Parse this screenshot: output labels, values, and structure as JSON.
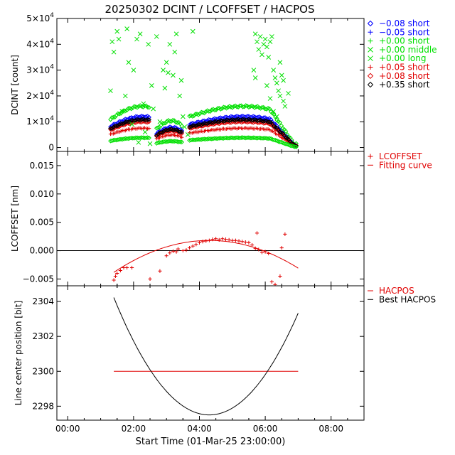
{
  "title": "20250302 DCINT / LCOFFSET / HACPOS",
  "xlabel": "Start Time (01-Mar-25 23:00:00)",
  "colors": {
    "blue": "#0000ff",
    "green": "#00e000",
    "red": "#e00000",
    "black": "#000000",
    "axes": "#000000"
  },
  "chart_data": [
    {
      "type": "scatter",
      "id": "dcint",
      "ylabel": "DCINT [count]",
      "xlim": [
        -0.33,
        9.0
      ],
      "ylim": [
        -1500,
        50000
      ],
      "x_ticks": [
        0,
        2,
        4,
        6,
        8
      ],
      "x_tick_labels": [
        "00:00",
        "02:00",
        "04:00",
        "06:00",
        "08:00"
      ],
      "y_ticks": [
        0,
        10000,
        20000,
        30000,
        40000,
        50000
      ],
      "y_tick_labels": [
        {
          "mantissa": "0",
          "exp": ""
        },
        {
          "mantissa": "1×10",
          "exp": "4"
        },
        {
          "mantissa": "2×10",
          "exp": "4"
        },
        {
          "mantissa": "3×10",
          "exp": "4"
        },
        {
          "mantissa": "4×10",
          "exp": "4"
        },
        {
          "mantissa": "5×10",
          "exp": "4"
        }
      ],
      "legend": [
        {
          "label": "−0.08 short",
          "marker": "diamond",
          "color": "#0000ff"
        },
        {
          "label": "−0.05 short",
          "marker": "plus",
          "color": "#0000ff"
        },
        {
          "label": "+0.00 short",
          "marker": "plus",
          "color": "#00e000"
        },
        {
          "label": "+0.00 middle",
          "marker": "cross",
          "color": "#00e000"
        },
        {
          "label": "+0.00 long",
          "marker": "cross",
          "color": "#00e000"
        },
        {
          "label": "+0.05 short",
          "marker": "plus",
          "color": "#e00000"
        },
        {
          "label": "+0.08 short",
          "marker": "diamond",
          "color": "#e00000"
        },
        {
          "label": "+0.35 short",
          "marker": "diamond",
          "color": "#000000"
        }
      ],
      "series": [
        {
          "name": "−0.08 short",
          "marker": "diamond",
          "color": "#0000ff",
          "peak": 12000
        },
        {
          "name": "−0.05 short",
          "marker": "plus",
          "color": "#0000ff",
          "peak": 11000
        },
        {
          "name": "+0.00 short",
          "marker": "diamond",
          "color": "#00e000",
          "peak": 16000
        },
        {
          "name": "+0.05 short",
          "marker": "plus",
          "color": "#e00000",
          "peak": 7500
        },
        {
          "name": "+0.08 short",
          "marker": "diamond",
          "color": "#e00000",
          "peak": 10000
        },
        {
          "name": "+0.35 short",
          "marker": "diamond",
          "color": "#000000",
          "peak": 10800
        },
        {
          "name": "+0.00 long (low)",
          "marker": "diamond",
          "color": "#00e000",
          "peak": 3800
        }
      ],
      "scatter_outliers": {
        "color": "#00e000",
        "marker": "cross",
        "points": [
          [
            1.3,
            22000
          ],
          [
            1.35,
            41000
          ],
          [
            1.4,
            37000
          ],
          [
            1.5,
            45000
          ],
          [
            1.55,
            42000
          ],
          [
            1.65,
            14000
          ],
          [
            1.75,
            20000
          ],
          [
            1.8,
            46000
          ],
          [
            1.85,
            33000
          ],
          [
            1.95,
            9000
          ],
          [
            2.0,
            30000
          ],
          [
            2.1,
            42000
          ],
          [
            2.2,
            44000
          ],
          [
            2.3,
            17000
          ],
          [
            2.35,
            6000
          ],
          [
            2.45,
            40000
          ],
          [
            2.55,
            24000
          ],
          [
            2.6,
            15000
          ],
          [
            2.7,
            43000
          ],
          [
            2.8,
            10000
          ],
          [
            2.9,
            30000
          ],
          [
            2.95,
            23000
          ],
          [
            3.0,
            33000
          ],
          [
            3.05,
            29000
          ],
          [
            3.1,
            40000
          ],
          [
            3.2,
            28000
          ],
          [
            3.25,
            37000
          ],
          [
            3.3,
            44000
          ],
          [
            3.4,
            20000
          ],
          [
            3.45,
            26000
          ],
          [
            3.55,
            8000
          ],
          [
            3.65,
            5000
          ],
          [
            3.8,
            45000
          ],
          [
            3.5,
            12000
          ],
          [
            2.15,
            2000
          ],
          [
            2.5,
            1500
          ],
          [
            5.7,
            44000
          ],
          [
            5.75,
            41000
          ],
          [
            5.8,
            38000
          ],
          [
            5.85,
            43000
          ],
          [
            5.9,
            36000
          ],
          [
            5.95,
            40000
          ],
          [
            6.0,
            42000
          ],
          [
            6.05,
            39000
          ],
          [
            6.1,
            35000
          ],
          [
            6.15,
            41000
          ],
          [
            6.2,
            43000
          ],
          [
            6.25,
            30000
          ],
          [
            6.3,
            27000
          ],
          [
            6.35,
            25000
          ],
          [
            6.4,
            22000
          ],
          [
            6.45,
            20000
          ],
          [
            6.5,
            28000
          ],
          [
            6.55,
            18000
          ],
          [
            6.6,
            16000
          ],
          [
            6.7,
            21000
          ],
          [
            5.65,
            30000
          ],
          [
            5.7,
            27000
          ],
          [
            6.05,
            24000
          ],
          [
            6.15,
            19000
          ],
          [
            6.25,
            14000
          ],
          [
            6.35,
            12000
          ],
          [
            6.45,
            33000
          ],
          [
            6.55,
            26000
          ]
        ]
      }
    },
    {
      "type": "scatter",
      "id": "lcoffset",
      "ylabel": "LCOFFSET [nm]",
      "xlim": [
        -0.33,
        9.0
      ],
      "ylim": [
        -0.0062,
        0.0175
      ],
      "y_ticks": [
        -0.005,
        0.0,
        0.005,
        0.01,
        0.015
      ],
      "y_tick_labels": [
        "−0.005",
        "0.000",
        "0.005",
        "0.010",
        "0.015"
      ],
      "zero_line": 0.0,
      "legend": [
        {
          "label": "LCOFFSET",
          "marker": "plus",
          "color": "#e00000"
        },
        {
          "label": "Fitting curve",
          "marker": "line",
          "color": "#e00000"
        }
      ],
      "fit": {
        "x_start": 1.4,
        "x_end": 7.0,
        "vertex_x": 4.3,
        "vertex_y": 0.0018,
        "a": -0.00067
      },
      "points": [
        [
          1.4,
          -0.0052
        ],
        [
          1.45,
          -0.0045
        ],
        [
          1.5,
          -0.004
        ],
        [
          1.6,
          -0.0035
        ],
        [
          1.7,
          -0.003
        ],
        [
          1.8,
          -0.003
        ],
        [
          1.95,
          -0.003
        ],
        [
          2.5,
          -0.005
        ],
        [
          2.8,
          -0.0036
        ],
        [
          3.0,
          -0.0009
        ],
        [
          3.1,
          -0.0004
        ],
        [
          3.2,
          -0.0001
        ],
        [
          3.3,
          -0.0002
        ],
        [
          3.35,
          0.0003
        ],
        [
          3.5,
          0.0
        ],
        [
          3.6,
          0.0001
        ],
        [
          3.7,
          0.0005
        ],
        [
          3.8,
          0.0008
        ],
        [
          3.9,
          0.0011
        ],
        [
          4.0,
          0.0014
        ],
        [
          4.1,
          0.0016
        ],
        [
          4.2,
          0.0017
        ],
        [
          4.3,
          0.0018
        ],
        [
          4.4,
          0.002
        ],
        [
          4.5,
          0.0021
        ],
        [
          4.6,
          0.0019
        ],
        [
          4.7,
          0.0021
        ],
        [
          4.8,
          0.002
        ],
        [
          4.9,
          0.0019
        ],
        [
          5.0,
          0.0018
        ],
        [
          5.1,
          0.0018
        ],
        [
          5.2,
          0.0017
        ],
        [
          5.3,
          0.0016
        ],
        [
          5.4,
          0.0015
        ],
        [
          5.5,
          0.0014
        ],
        [
          5.6,
          0.001
        ],
        [
          5.7,
          0.0004
        ],
        [
          5.75,
          0.0031
        ],
        [
          5.8,
          0.0002
        ],
        [
          5.9,
          -0.0003
        ],
        [
          6.0,
          -0.0002
        ],
        [
          6.1,
          -0.0005
        ],
        [
          6.2,
          -0.0055
        ],
        [
          6.3,
          -0.006
        ],
        [
          6.45,
          -0.0045
        ],
        [
          6.5,
          0.0005
        ],
        [
          6.6,
          0.0029
        ]
      ]
    },
    {
      "type": "line",
      "id": "hacpos",
      "ylabel": "Line center position [bit]",
      "xlim": [
        -0.33,
        9.0
      ],
      "ylim": [
        2297.2,
        2304.9
      ],
      "y_ticks": [
        2298,
        2300,
        2302,
        2304
      ],
      "y_tick_labels": [
        "2298",
        "2300",
        "2302",
        "2304"
      ],
      "legend": [
        {
          "label": "HACPOS",
          "marker": "line",
          "color": "#e00000"
        },
        {
          "label": "Best HACPOS",
          "marker": "line",
          "color": "#000000"
        }
      ],
      "series": [
        {
          "name": "HACPOS",
          "color": "#e00000",
          "x": [
            1.4,
            7.0
          ],
          "y": [
            2300,
            2300
          ]
        },
        {
          "name": "Best HACPOS",
          "color": "#000000",
          "x_start": 1.4,
          "x_end": 7.0,
          "vertex_x": 4.3,
          "vertex_y": 2297.5,
          "a": 0.8
        }
      ]
    }
  ]
}
